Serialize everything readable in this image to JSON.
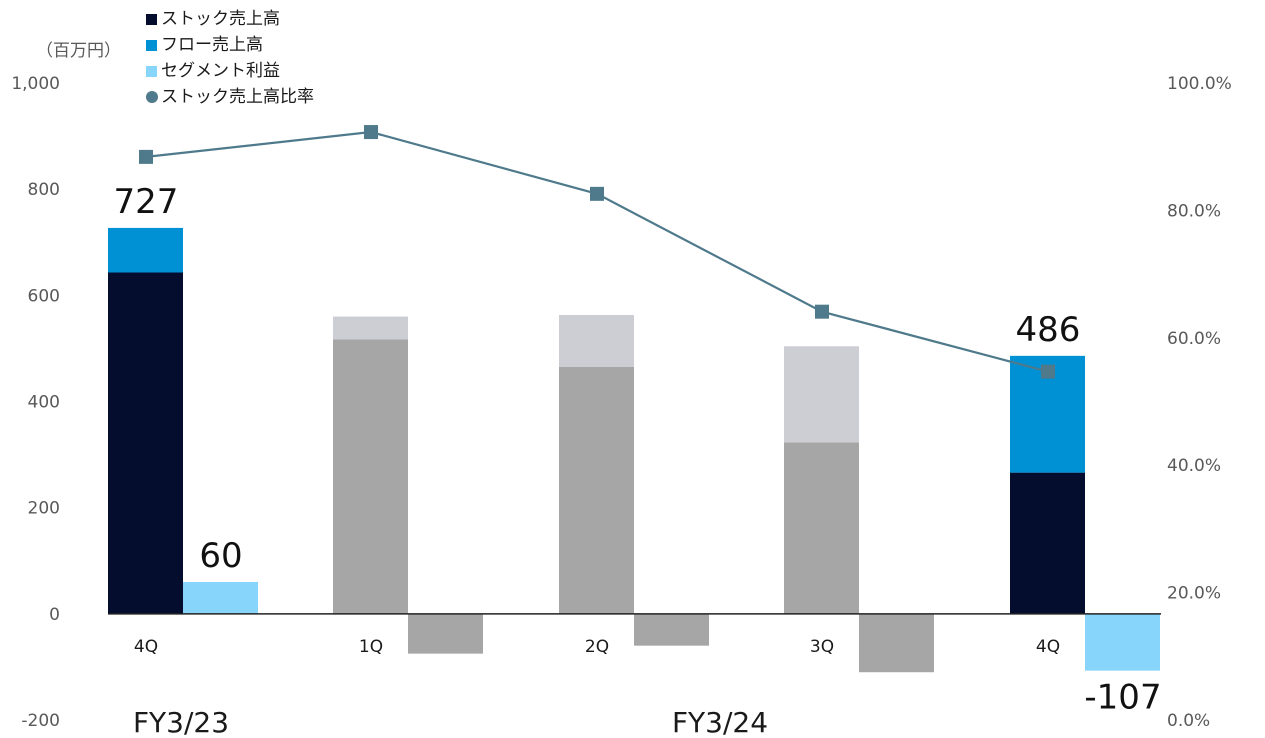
{
  "chart_data": {
    "type": "bar",
    "unit_label": "（百万円）",
    "categories": [
      "4Q",
      "1Q",
      "2Q",
      "3Q",
      "4Q"
    ],
    "period_labels": [
      "FY3/23",
      "FY3/24"
    ],
    "series": [
      {
        "name": "ストック売上高",
        "stack": "sales",
        "values": [
          643,
          517,
          465,
          323,
          266
        ],
        "colors": [
          "#050d2e",
          "#a6a6a6",
          "#a6a6a6",
          "#a6a6a6",
          "#050d2e"
        ]
      },
      {
        "name": "フロー売上高",
        "stack": "sales",
        "values": [
          84,
          43,
          98,
          181,
          220
        ],
        "colors": [
          "#0090d4",
          "#cdcdd4",
          "#cdcdd4",
          "#cdcdd4",
          "#0090d4"
        ]
      },
      {
        "name": "セグメント利益",
        "stack": "profit",
        "values": [
          60,
          -75,
          -60,
          -110,
          -107
        ],
        "colors": [
          "#87d5fb",
          "#a6a6a6",
          "#a6a6a6",
          "#a6a6a6",
          "#87d5fb"
        ]
      },
      {
        "name": "ストック売上高比率",
        "type": "line",
        "axis": "right",
        "values": [
          88.4,
          92.3,
          82.6,
          64.1,
          54.7
        ],
        "color": "#4f7a8c"
      }
    ],
    "data_labels": [
      {
        "category_index": 0,
        "series": "sales_total",
        "text": "727"
      },
      {
        "category_index": 0,
        "series": "profit",
        "text": "60"
      },
      {
        "category_index": 4,
        "series": "sales_total",
        "text": "486"
      },
      {
        "category_index": 4,
        "series": "profit",
        "text": "-107"
      }
    ],
    "y_left": {
      "min": -200,
      "max": 1000,
      "ticks": [
        -200,
        0,
        200,
        400,
        600,
        800,
        1000
      ],
      "tick_labels": [
        "-200",
        "0",
        "200",
        "400",
        "600",
        "800",
        "1,000"
      ]
    },
    "y_right": {
      "min": 0,
      "max": 100,
      "ticks": [
        0,
        20,
        40,
        60,
        80,
        100
      ],
      "tick_labels": [
        "0.0%",
        "20.0%",
        "40.0%",
        "60.0%",
        "80.0%",
        "100.0%"
      ]
    },
    "legend_position": "top-left",
    "grid": false
  }
}
